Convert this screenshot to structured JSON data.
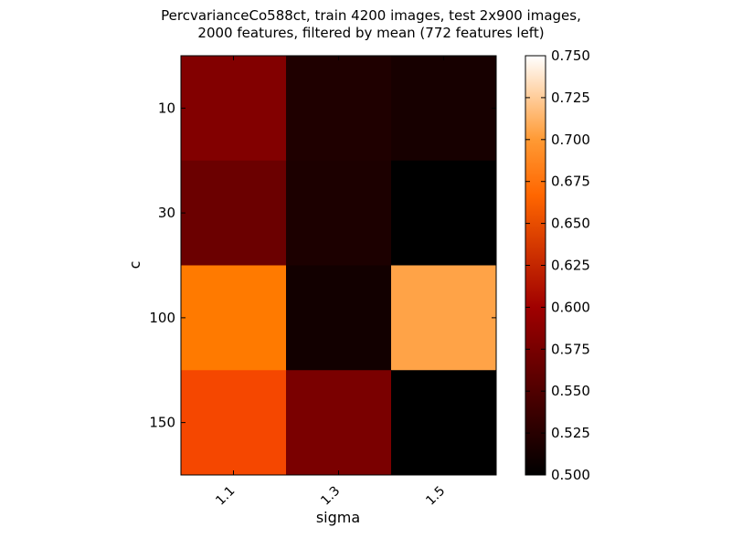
{
  "chart_data": {
    "type": "heatmap",
    "title_line1": "PercvarianceCo588ct, train 4200 images, test 2x900 images,",
    "title_line2": "2000 features, filtered by mean (772 features left)",
    "xlabel": "sigma",
    "ylabel": "c",
    "x_categories": [
      "1.1",
      "1.3",
      "1.5"
    ],
    "y_categories": [
      "10",
      "30",
      "100",
      "150"
    ],
    "values": [
      [
        0.585,
        0.52,
        0.515
      ],
      [
        0.57,
        0.518,
        0.5
      ],
      [
        0.685,
        0.512,
        0.705
      ],
      [
        0.66,
        0.58,
        0.5
      ]
    ],
    "colorbar": {
      "min": 0.5,
      "max": 0.75,
      "ticks": [
        "0.500",
        "0.525",
        "0.550",
        "0.575",
        "0.600",
        "0.625",
        "0.650",
        "0.675",
        "0.700",
        "0.725",
        "0.750"
      ],
      "colormap": "gist_heat"
    }
  }
}
